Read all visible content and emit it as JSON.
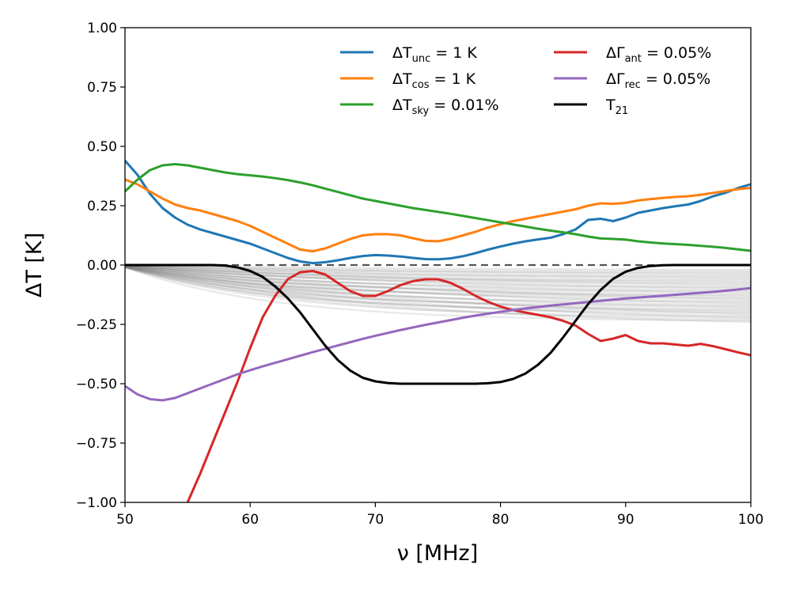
{
  "chart_data": {
    "type": "line",
    "xlabel": "ν [MHz]",
    "ylabel": "ΔT [K]",
    "xlim": [
      50,
      100
    ],
    "ylim": [
      -1.0,
      1.0
    ],
    "xticks": [
      "50",
      "60",
      "70",
      "80",
      "90",
      "100"
    ],
    "yticks": [
      "−1.00",
      "−0.75",
      "−0.50",
      "−0.25",
      "0.00",
      "0.25",
      "0.50",
      "0.75",
      "1.00"
    ],
    "grid": false,
    "legend_position": "top-right",
    "legend_columns": 2,
    "background_curves": {
      "description_visible": "many faint gray curves spreading below zero",
      "color": "#808080",
      "count": 40,
      "end_range": [
        -0.02,
        -0.23
      ]
    },
    "zero_line": {
      "y": 0.0,
      "style": "dashed",
      "color": "#555555"
    },
    "series": [
      {
        "name": "ΔT_unc = 1 K",
        "legend_base": "ΔT",
        "legend_sub": "unc",
        "legend_rest": " = 1 K",
        "color": "#1f77b4",
        "x": [
          50,
          51,
          52,
          53,
          54,
          55,
          56,
          57,
          58,
          59,
          60,
          61,
          62,
          63,
          64,
          65,
          66,
          67,
          68,
          69,
          70,
          71,
          72,
          73,
          74,
          75,
          76,
          77,
          78,
          79,
          80,
          81,
          82,
          83,
          84,
          85,
          86,
          87,
          88,
          89,
          90,
          91,
          92,
          93,
          94,
          95,
          96,
          97,
          98,
          99,
          100
        ],
        "y": [
          0.44,
          0.38,
          0.3,
          0.24,
          0.2,
          0.17,
          0.15,
          0.135,
          0.12,
          0.105,
          0.09,
          0.07,
          0.05,
          0.03,
          0.015,
          0.008,
          0.012,
          0.02,
          0.03,
          0.038,
          0.042,
          0.04,
          0.036,
          0.03,
          0.025,
          0.024,
          0.028,
          0.037,
          0.05,
          0.065,
          0.078,
          0.09,
          0.1,
          0.108,
          0.115,
          0.13,
          0.15,
          0.19,
          0.195,
          0.185,
          0.2,
          0.22,
          0.23,
          0.24,
          0.248,
          0.255,
          0.27,
          0.29,
          0.305,
          0.325,
          0.34
        ]
      },
      {
        "name": "ΔT_cos = 1 K",
        "legend_base": "ΔT",
        "legend_sub": "cos",
        "legend_rest": " = 1 K",
        "color": "#ff7f0e",
        "x": [
          50,
          51,
          52,
          53,
          54,
          55,
          56,
          57,
          58,
          59,
          60,
          61,
          62,
          63,
          64,
          65,
          66,
          67,
          68,
          69,
          70,
          71,
          72,
          73,
          74,
          75,
          76,
          77,
          78,
          79,
          80,
          81,
          82,
          83,
          84,
          85,
          86,
          87,
          88,
          89,
          90,
          91,
          92,
          93,
          94,
          95,
          96,
          97,
          98,
          99,
          100
        ],
        "y": [
          0.36,
          0.34,
          0.31,
          0.28,
          0.255,
          0.24,
          0.23,
          0.215,
          0.2,
          0.185,
          0.165,
          0.14,
          0.115,
          0.09,
          0.065,
          0.058,
          0.07,
          0.09,
          0.11,
          0.125,
          0.13,
          0.13,
          0.125,
          0.113,
          0.102,
          0.1,
          0.11,
          0.125,
          0.14,
          0.158,
          0.172,
          0.185,
          0.195,
          0.205,
          0.215,
          0.225,
          0.235,
          0.25,
          0.26,
          0.258,
          0.262,
          0.272,
          0.278,
          0.283,
          0.287,
          0.29,
          0.296,
          0.304,
          0.312,
          0.32,
          0.325
        ]
      },
      {
        "name": "ΔT_sky = 0.01%",
        "legend_base": "ΔT",
        "legend_sub": "sky",
        "legend_rest": " = 0.01%",
        "color": "#2ca02c",
        "x": [
          50,
          51,
          52,
          53,
          54,
          55,
          56,
          57,
          58,
          59,
          60,
          61,
          62,
          63,
          64,
          65,
          66,
          67,
          68,
          69,
          70,
          71,
          72,
          73,
          74,
          75,
          76,
          77,
          78,
          79,
          80,
          81,
          82,
          83,
          84,
          85,
          86,
          87,
          88,
          89,
          90,
          91,
          92,
          93,
          94,
          95,
          96,
          97,
          98,
          99,
          100
        ],
        "y": [
          0.31,
          0.36,
          0.4,
          0.42,
          0.425,
          0.42,
          0.41,
          0.4,
          0.39,
          0.383,
          0.378,
          0.373,
          0.366,
          0.358,
          0.348,
          0.336,
          0.322,
          0.308,
          0.294,
          0.28,
          0.27,
          0.26,
          0.25,
          0.24,
          0.232,
          0.224,
          0.216,
          0.207,
          0.198,
          0.189,
          0.18,
          0.171,
          0.162,
          0.153,
          0.145,
          0.138,
          0.13,
          0.12,
          0.112,
          0.11,
          0.107,
          0.1,
          0.095,
          0.091,
          0.088,
          0.085,
          0.081,
          0.077,
          0.072,
          0.066,
          0.06
        ]
      },
      {
        "name": "ΔΓ_ant = 0.05%",
        "legend_base": "ΔΓ",
        "legend_sub": "ant",
        "legend_rest": " = 0.05%",
        "color": "#d62728",
        "x": [
          55,
          56,
          57,
          58,
          59,
          60,
          61,
          62,
          63,
          64,
          65,
          66,
          67,
          68,
          69,
          70,
          71,
          72,
          73,
          74,
          75,
          76,
          77,
          78,
          79,
          80,
          81,
          82,
          83,
          84,
          85,
          86,
          87,
          88,
          89,
          90,
          91,
          92,
          93,
          94,
          95,
          96,
          97,
          98,
          99,
          100
        ],
        "y": [
          -1.0,
          -0.88,
          -0.75,
          -0.62,
          -0.49,
          -0.35,
          -0.22,
          -0.13,
          -0.06,
          -0.03,
          -0.025,
          -0.04,
          -0.075,
          -0.11,
          -0.13,
          -0.13,
          -0.11,
          -0.085,
          -0.068,
          -0.06,
          -0.06,
          -0.075,
          -0.1,
          -0.13,
          -0.155,
          -0.175,
          -0.19,
          -0.2,
          -0.21,
          -0.22,
          -0.235,
          -0.255,
          -0.29,
          -0.32,
          -0.31,
          -0.295,
          -0.32,
          -0.33,
          -0.33,
          -0.335,
          -0.34,
          -0.332,
          -0.342,
          -0.355,
          -0.368,
          -0.38
        ]
      },
      {
        "name": "ΔΓ_rec = 0.05%",
        "legend_base": "ΔΓ",
        "legend_sub": "rec",
        "legend_rest": " = 0.05%",
        "color": "#9467bd",
        "x": [
          50,
          51,
          52,
          53,
          54,
          55,
          56,
          57,
          58,
          59,
          60,
          61,
          62,
          63,
          64,
          65,
          66,
          67,
          68,
          69,
          70,
          71,
          72,
          73,
          74,
          75,
          76,
          77,
          78,
          79,
          80,
          81,
          82,
          83,
          84,
          85,
          86,
          87,
          88,
          89,
          90,
          91,
          92,
          93,
          94,
          95,
          96,
          97,
          98,
          99,
          100
        ],
        "y": [
          -0.51,
          -0.545,
          -0.565,
          -0.57,
          -0.56,
          -0.54,
          -0.52,
          -0.5,
          -0.48,
          -0.46,
          -0.443,
          -0.427,
          -0.412,
          -0.397,
          -0.382,
          -0.367,
          -0.353,
          -0.339,
          -0.325,
          -0.311,
          -0.298,
          -0.286,
          -0.274,
          -0.263,
          -0.252,
          -0.242,
          -0.232,
          -0.222,
          -0.213,
          -0.205,
          -0.197,
          -0.19,
          -0.183,
          -0.177,
          -0.171,
          -0.166,
          -0.161,
          -0.156,
          -0.151,
          -0.146,
          -0.141,
          -0.137,
          -0.133,
          -0.129,
          -0.125,
          -0.121,
          -0.117,
          -0.113,
          -0.108,
          -0.103,
          -0.097
        ]
      },
      {
        "name": "T_21",
        "legend_base": "T",
        "legend_sub": "21",
        "legend_rest": "",
        "color": "#000000",
        "x": [
          50,
          55,
          57,
          58,
          59,
          60,
          61,
          62,
          63,
          64,
          65,
          66,
          67,
          68,
          69,
          70,
          71,
          72,
          74,
          76,
          78,
          79,
          80,
          81,
          82,
          83,
          84,
          85,
          86,
          87,
          88,
          89,
          90,
          91,
          92,
          93,
          94,
          96,
          100
        ],
        "y": [
          0.0,
          0.0,
          0.0,
          -0.002,
          -0.01,
          -0.025,
          -0.05,
          -0.09,
          -0.14,
          -0.2,
          -0.27,
          -0.34,
          -0.4,
          -0.445,
          -0.475,
          -0.49,
          -0.497,
          -0.5,
          -0.5,
          -0.5,
          -0.5,
          -0.498,
          -0.493,
          -0.48,
          -0.457,
          -0.42,
          -0.37,
          -0.305,
          -0.235,
          -0.165,
          -0.105,
          -0.058,
          -0.028,
          -0.012,
          -0.004,
          -0.001,
          0.0,
          0.0,
          0.0
        ]
      }
    ]
  }
}
